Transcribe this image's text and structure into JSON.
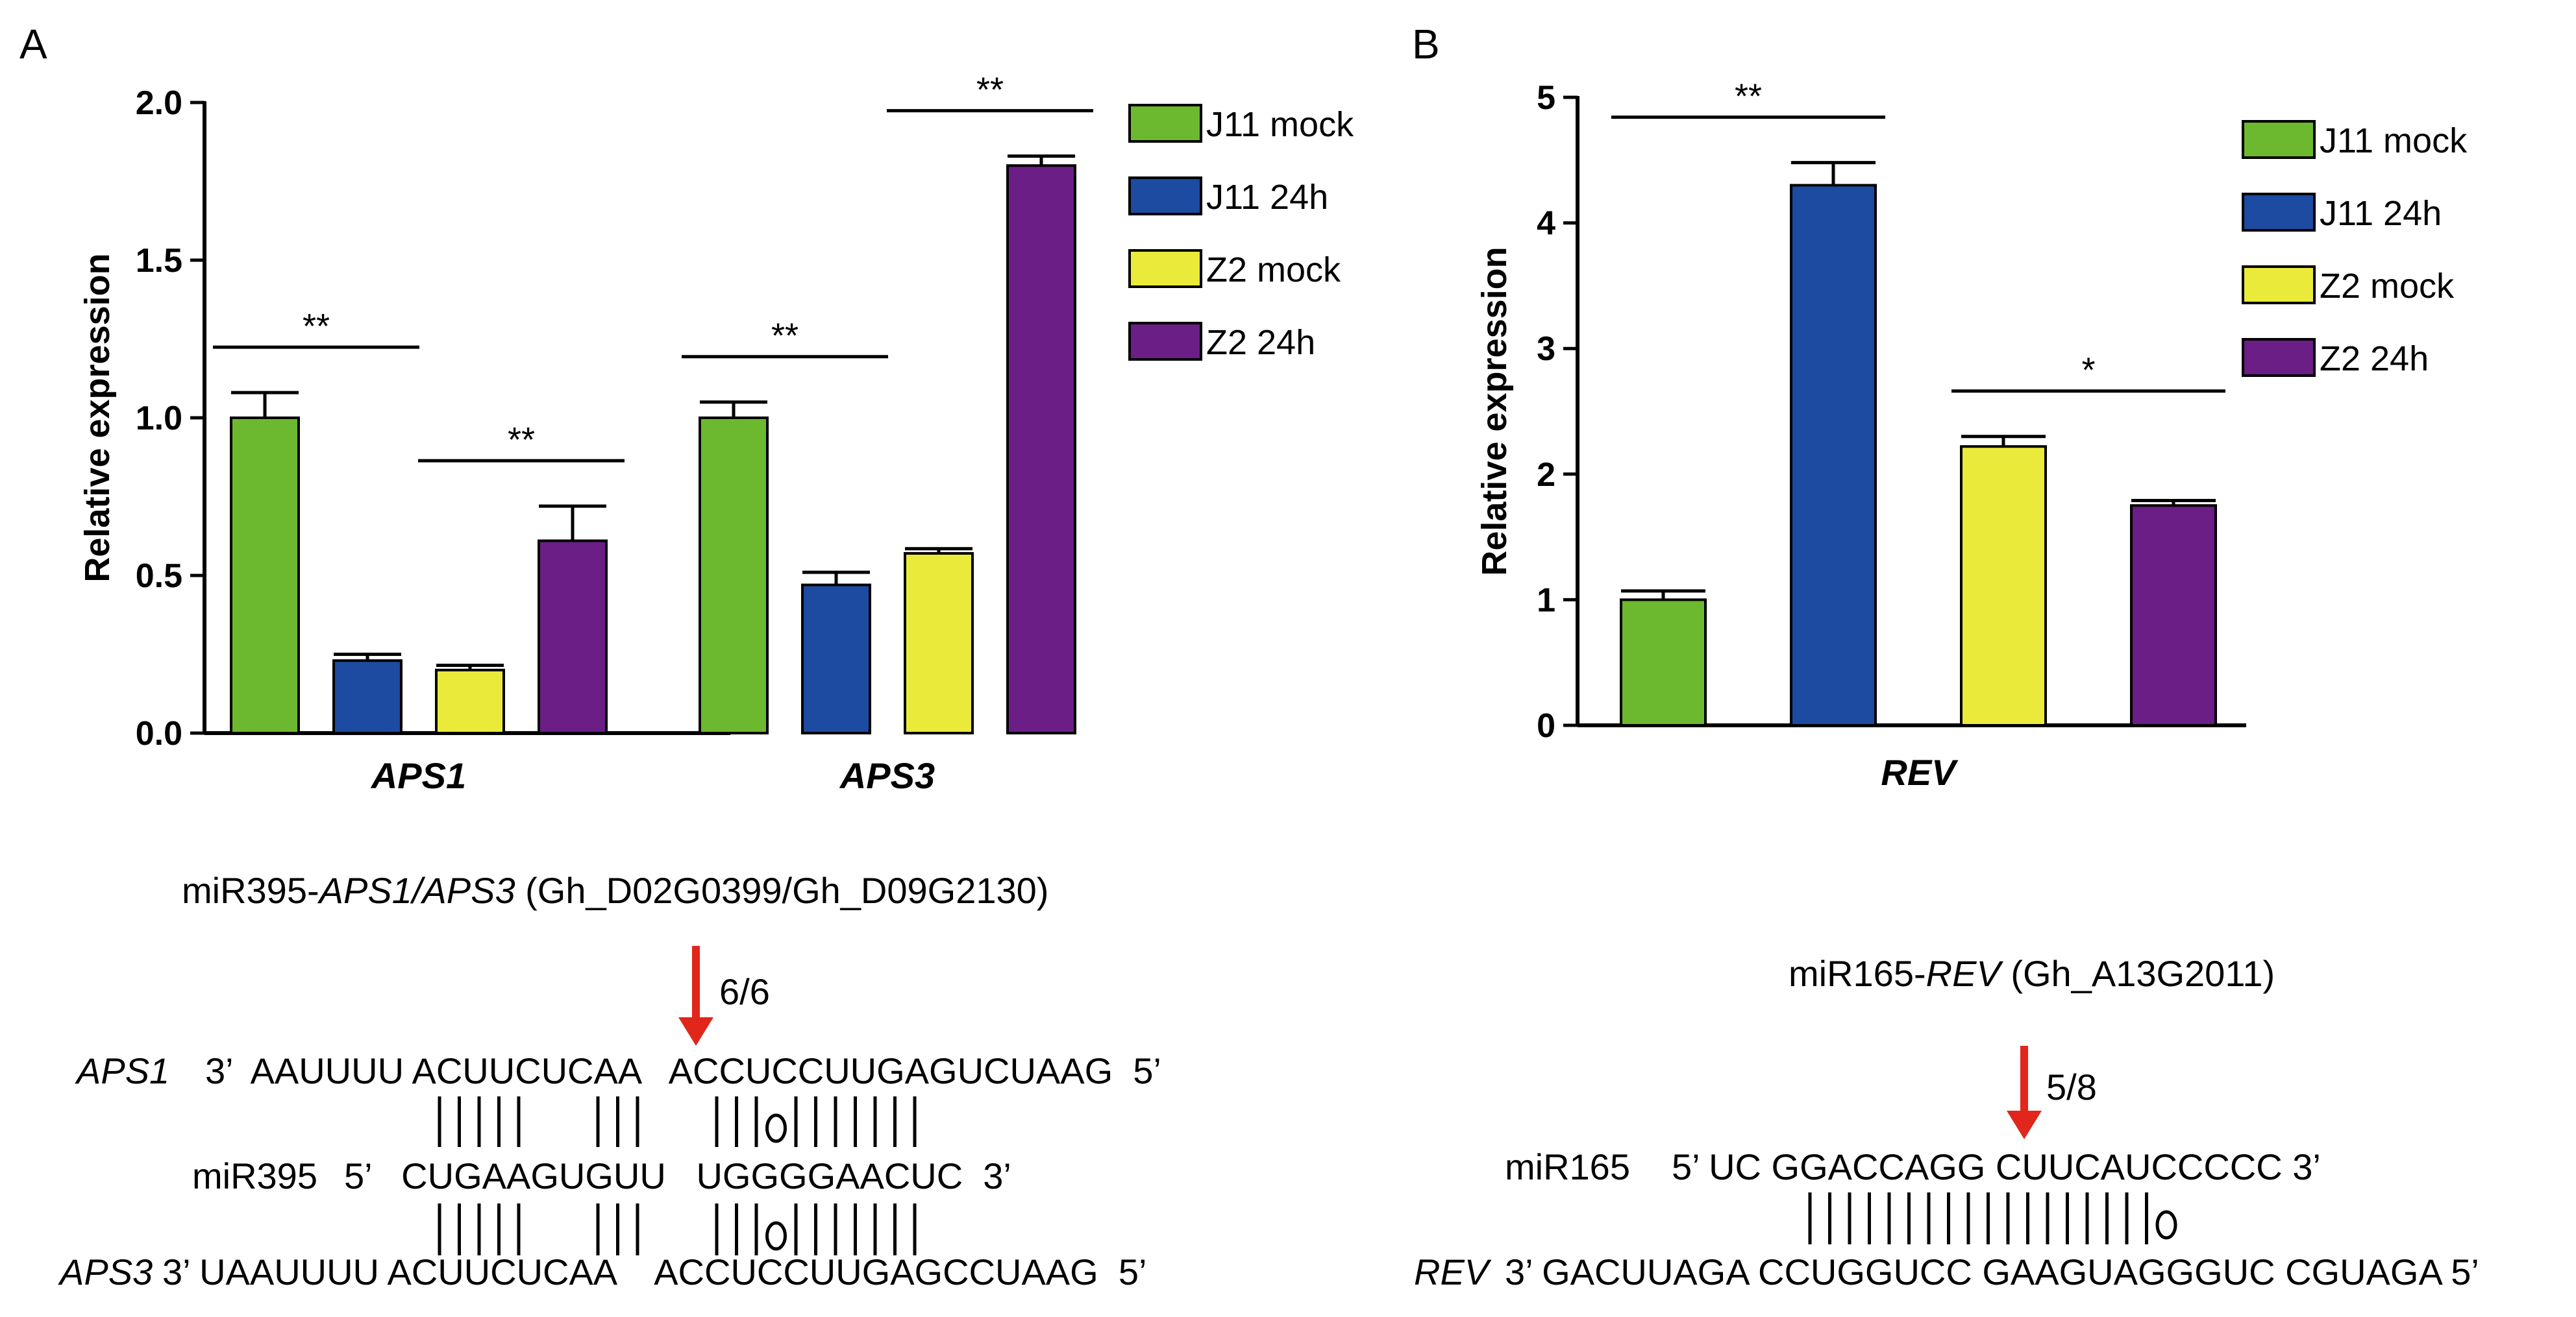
{
  "colors": {
    "J11 mock": "#6cb92f",
    "J11 24h": "#1c4ba1",
    "Z2 mock": "#eaea3b",
    "Z2 24h": "#6a1e86",
    "arrow": "#e1261c"
  },
  "chart_data": [
    {
      "panel": "A",
      "type": "bar",
      "ylabel": "Relative expression",
      "ylim": [
        0,
        2.0
      ],
      "yticks": [
        "0.0",
        "0.5",
        "1.0",
        "1.5",
        "2.0"
      ],
      "categories": [
        "APS1",
        "APS3"
      ],
      "series": [
        {
          "name": "J11 mock",
          "values": [
            1.0,
            1.0
          ],
          "errors": [
            0.08,
            0.05
          ]
        },
        {
          "name": "J11 24h",
          "values": [
            0.23,
            0.47
          ],
          "errors": [
            0.02,
            0.04
          ]
        },
        {
          "name": "Z2 mock",
          "values": [
            0.2,
            0.57
          ],
          "errors": [
            0.015,
            0.015
          ]
        },
        {
          "name": "Z2 24h",
          "values": [
            0.61,
            1.8
          ],
          "errors": [
            0.11,
            0.03
          ]
        }
      ],
      "significance": [
        {
          "category": 0,
          "from": 0,
          "to": 1,
          "label": "**"
        },
        {
          "category": 0,
          "from": 2,
          "to": 3,
          "label": "**"
        },
        {
          "category": 1,
          "from": 0,
          "to": 1,
          "label": "**"
        },
        {
          "category": 1,
          "from": 2,
          "to": 3,
          "label": "**"
        }
      ],
      "legend": [
        "J11 mock",
        "J11 24h",
        "Z2 mock",
        "Z2 24h"
      ]
    },
    {
      "panel": "B",
      "type": "bar",
      "ylabel": "Relative expression",
      "ylim": [
        0,
        5
      ],
      "yticks": [
        "0",
        "1",
        "2",
        "3",
        "4",
        "5"
      ],
      "categories": [
        "REV"
      ],
      "series": [
        {
          "name": "J11 mock",
          "values": [
            1.0
          ],
          "errors": [
            0.07
          ]
        },
        {
          "name": "J11 24h",
          "values": [
            4.3
          ],
          "errors": [
            0.18
          ]
        },
        {
          "name": "Z2 mock",
          "values": [
            2.22
          ],
          "errors": [
            0.08
          ]
        },
        {
          "name": "Z2 24h",
          "values": [
            1.75
          ],
          "errors": [
            0.04
          ]
        }
      ],
      "significance": [
        {
          "category": 0,
          "from": 0,
          "to": 1,
          "label": "**"
        },
        {
          "category": 0,
          "from": 2,
          "to": 3,
          "label": "*"
        }
      ],
      "legend": [
        "J11 mock",
        "J11 24h",
        "Z2 mock",
        "Z2 24h"
      ]
    }
  ],
  "seqA": {
    "title_prefix": "miR395-",
    "title_gene": "APS1/APS3",
    "title_suffix": " (Gh_D02G0399/Gh_D09G2130)",
    "ratio": "6/6",
    "row1_gene": "APS1",
    "row1_seq": "3’  AAUUUU ACUUCUCAA   ACCUCCUUGAGUCUAAG  5’",
    "pairs1": "|||||   |||   |||0|||||||",
    "row2_label": "miR395",
    "row2_seq": "5’   CUGAAGUGUU   UGGGGAACUC  3’",
    "pairs2": "|||||   |||   |||0|||||||",
    "row3_gene": "APS3",
    "row3_seq": "3’ UAAUUUU ACUUCUCAA    ACCUCCUUGAGCCUAAG  5’"
  },
  "seqB": {
    "title_prefix": "miR165-",
    "title_gene": "REV",
    "title_suffix": " (Gh_A13G2011)",
    "ratio": "5/8",
    "row1_label": "miR165",
    "row1_seq": "5’ UC GGACCAGG CUUCAUCCCCC 3’",
    "pairs": "||||||||||||||||||0",
    "row2_gene": "REV",
    "row2_seq": "3’ GACUUAGA CCUGGUCC GAAGUAGGGUC CGUAGA 5’"
  }
}
